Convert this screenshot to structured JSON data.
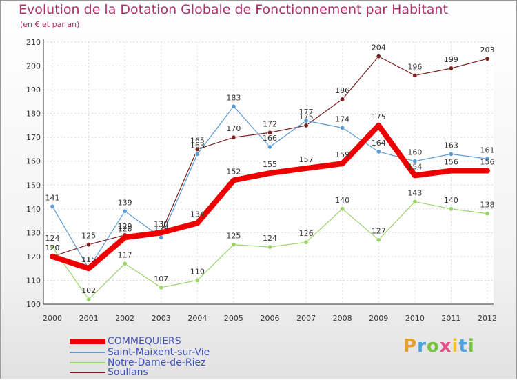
{
  "chart_data": {
    "type": "line",
    "title": "Evolution de la Dotation Globale de Fonctionnement par Habitant",
    "subtitle": "(en € et par an)",
    "x": [
      "2000",
      "2001",
      "2002",
      "2003",
      "2004",
      "2005",
      "2006",
      "2007",
      "2008",
      "2009",
      "2010",
      "2011",
      "2012"
    ],
    "ylim": [
      100,
      210
    ],
    "yticks": [
      100,
      110,
      120,
      130,
      140,
      150,
      160,
      170,
      180,
      190,
      200,
      210
    ],
    "series": [
      {
        "name": "Soullans",
        "color": "#7a1f1f",
        "values": [
          120,
          125,
          129,
          130,
          165,
          170,
          172,
          175,
          186,
          204,
          196,
          199,
          203
        ]
      },
      {
        "name": "Saint-Maixent-sur-Vie",
        "color": "#5b9bd5",
        "values": [
          141,
          115,
          139,
          128,
          163,
          183,
          166,
          177,
          174,
          164,
          160,
          163,
          161
        ]
      },
      {
        "name": "Notre-Dame-de-Riez",
        "color": "#9ad468",
        "values": [
          124,
          102,
          117,
          107,
          110,
          125,
          124,
          126,
          140,
          127,
          143,
          140,
          138
        ]
      },
      {
        "name": "COMMEQUIERS",
        "color": "#ee0000",
        "values": [
          120,
          115,
          128,
          130,
          134,
          152,
          155,
          157,
          159,
          175,
          154,
          156,
          156
        ]
      }
    ],
    "legend": [
      "COMMEQUIERS",
      "Saint-Maixent-sur-Vie",
      "Notre-Dame-de-Riez",
      "Soullans"
    ],
    "legend_colors": [
      "#ee0000",
      "#5b9bd5",
      "#9ad468",
      "#7a1f1f"
    ]
  },
  "logo": {
    "letters": [
      "P",
      "r",
      "o",
      "x",
      "i",
      "t",
      "i"
    ]
  }
}
